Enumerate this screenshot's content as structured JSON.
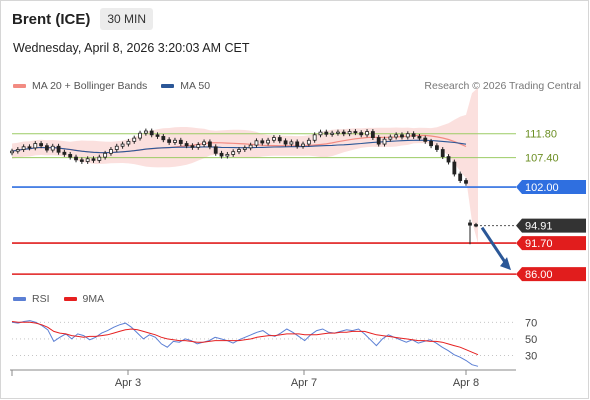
{
  "header": {
    "instrument": "Brent (ICE)",
    "timeframe": "30 MIN"
  },
  "timestamp": "Wednesday, April 8, 2026 3:20:03 AM CET",
  "legend": [
    {
      "label": "MA 20 + Bollinger Bands",
      "color": "#f28b82"
    },
    {
      "label": "MA 50",
      "color": "#2b5797"
    }
  ],
  "credit": "Research © 2026 Trading Central",
  "rsi_legend": [
    {
      "label": "RSI",
      "color": "#5b7fd4"
    },
    {
      "label": "9MA",
      "color": "#e62020"
    }
  ],
  "colors": {
    "resistance": "#9ccc65",
    "pivot": "#2f6fe0",
    "support": "#e11d1d",
    "last_price": "#333333",
    "arrow": "#2b5797",
    "up_candle": "#ffffff",
    "down_candle": "#222222"
  },
  "chart_data": [
    {
      "type": "candlestick",
      "instrument": "Brent (ICE)",
      "timeframe": "30 MIN",
      "x_tick_labels": [
        "Apr 3",
        "Apr 7",
        "Apr 8"
      ],
      "price_levels": [
        {
          "value": "111.80",
          "type": "resistance"
        },
        {
          "value": "107.40",
          "type": "resistance"
        },
        {
          "value": "102.00",
          "type": "pivot"
        },
        {
          "value": "94.91",
          "type": "last_price"
        },
        {
          "value": "91.70",
          "type": "support"
        },
        {
          "value": "86.00",
          "type": "support"
        }
      ],
      "y_range": [
        84,
        118
      ],
      "close_series": [
        108.6,
        108.9,
        109.4,
        109.2,
        110.0,
        109.6,
        108.8,
        109.5,
        108.4,
        108.0,
        107.5,
        107.0,
        106.7,
        107.2,
        106.9,
        107.5,
        108.2,
        108.9,
        109.5,
        109.9,
        110.4,
        111.0,
        111.9,
        112.3,
        111.6,
        111.3,
        110.7,
        110.2,
        110.6,
        110.0,
        109.6,
        109.3,
        109.8,
        110.3,
        109.4,
        108.2,
        107.7,
        108.0,
        108.5,
        108.9,
        109.2,
        109.7,
        110.5,
        110.1,
        110.6,
        111.1,
        110.5,
        109.9,
        110.3,
        109.5,
        109.9,
        110.6,
        111.6,
        112.1,
        111.7,
        111.9,
        112.1,
        111.8,
        112.2,
        112.0,
        111.6,
        112.2,
        111.1,
        109.9,
        110.8,
        111.2,
        111.6,
        111.2,
        111.8,
        111.3,
        111.0,
        110.4,
        109.6,
        108.9,
        107.6,
        106.6,
        104.4,
        103.2,
        102.7
      ],
      "last_candles": [
        95.0,
        94.91
      ],
      "direction": "down",
      "target": "86.00"
    },
    {
      "type": "line",
      "name": "RSI",
      "yticks": [
        70,
        50,
        30
      ],
      "series": [
        {
          "name": "RSI",
          "values": [
            70,
            69,
            71,
            72,
            70,
            66,
            61,
            47,
            52,
            56,
            50,
            56,
            54,
            49,
            52,
            57,
            60,
            64,
            67,
            69,
            64,
            57,
            50,
            55,
            52,
            44,
            40,
            47,
            46,
            50,
            48,
            44,
            46,
            48,
            52,
            50,
            48,
            45,
            49,
            52,
            55,
            58,
            60,
            55,
            53,
            57,
            62,
            58,
            53,
            48,
            55,
            60,
            62,
            58,
            57,
            59,
            61,
            60,
            62,
            56,
            49,
            42,
            50,
            55,
            52,
            49,
            46,
            49,
            45,
            47,
            49,
            45,
            40,
            36,
            31,
            28,
            24,
            19,
            17
          ]
        },
        {
          "name": "9MA",
          "values": [
            71,
            70,
            70,
            70,
            69,
            67,
            64,
            59,
            57,
            56,
            54,
            53,
            52,
            53,
            53,
            54,
            55,
            57,
            59,
            61,
            62,
            61,
            59,
            57,
            55,
            52,
            50,
            49,
            48,
            48,
            47,
            46,
            46,
            47,
            48,
            48,
            48,
            48,
            48,
            49,
            50,
            52,
            53,
            54,
            54,
            55,
            56,
            56,
            56,
            55,
            55,
            55,
            56,
            57,
            57,
            58,
            58,
            59,
            59,
            59,
            57,
            55,
            54,
            53,
            52,
            51,
            50,
            49,
            48,
            48,
            47,
            47,
            46,
            44,
            42,
            40,
            37,
            34,
            31
          ]
        }
      ]
    }
  ]
}
